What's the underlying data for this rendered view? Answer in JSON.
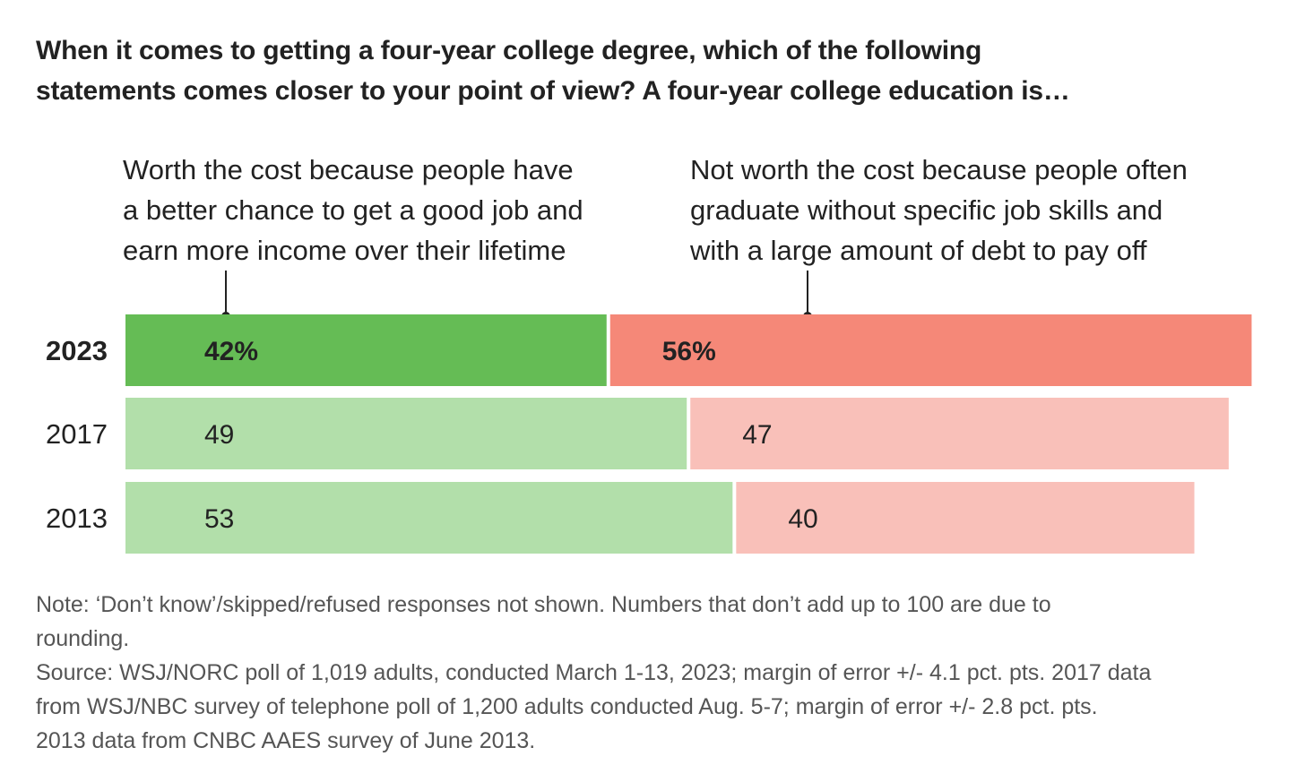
{
  "title_lines": [
    "When it comes to getting a four-year college degree, which of the following",
    "statements comes closer to your point of view? A four-year college education is…"
  ],
  "category_labels": {
    "worth": [
      "Worth the cost because people have",
      "a better chance to get a good job and",
      "earn more income over their lifetime"
    ],
    "not_worth": [
      "Not worth the cost because people often",
      "graduate without specific job skills and",
      "with a large amount of debt to pay off"
    ]
  },
  "notes": [
    "Note: ‘Don’t know’/skipped/refused responses not shown. Numbers that don’t add up to 100 are due to",
    "rounding.",
    "Source: WSJ/NORC poll of 1,019 adults, conducted March 1-13, 2023; margin of error +/- 4.1 pct. pts. 2017 data",
    "from WSJ/NBC survey of telephone poll of 1,200 adults conducted Aug. 5-7; margin of error +/- 2.8 pct. pts.",
    "2013 data from CNBC AAES survey of June 2013."
  ],
  "colors": {
    "worth_highlight": "#65bc55",
    "not_worth_highlight": "#f58878",
    "worth": "#b2dfaa",
    "not_worth": "#f9c0b9",
    "text": "#222222",
    "note_text": "#555555"
  },
  "chart_data": {
    "type": "bar",
    "orientation": "horizontal-stacked",
    "categories": [
      "2023",
      "2017",
      "2013"
    ],
    "series": [
      {
        "name": "Worth the cost",
        "values": [
          42,
          49,
          53
        ],
        "labels": [
          "42%",
          "49",
          "53"
        ]
      },
      {
        "name": "Not worth the cost",
        "values": [
          56,
          47,
          40
        ],
        "labels": [
          "56%",
          "47",
          "40"
        ]
      }
    ],
    "highlight_category": "2023",
    "xlim": [
      0,
      100
    ],
    "grid": false,
    "legend": "direct labels above bars"
  }
}
